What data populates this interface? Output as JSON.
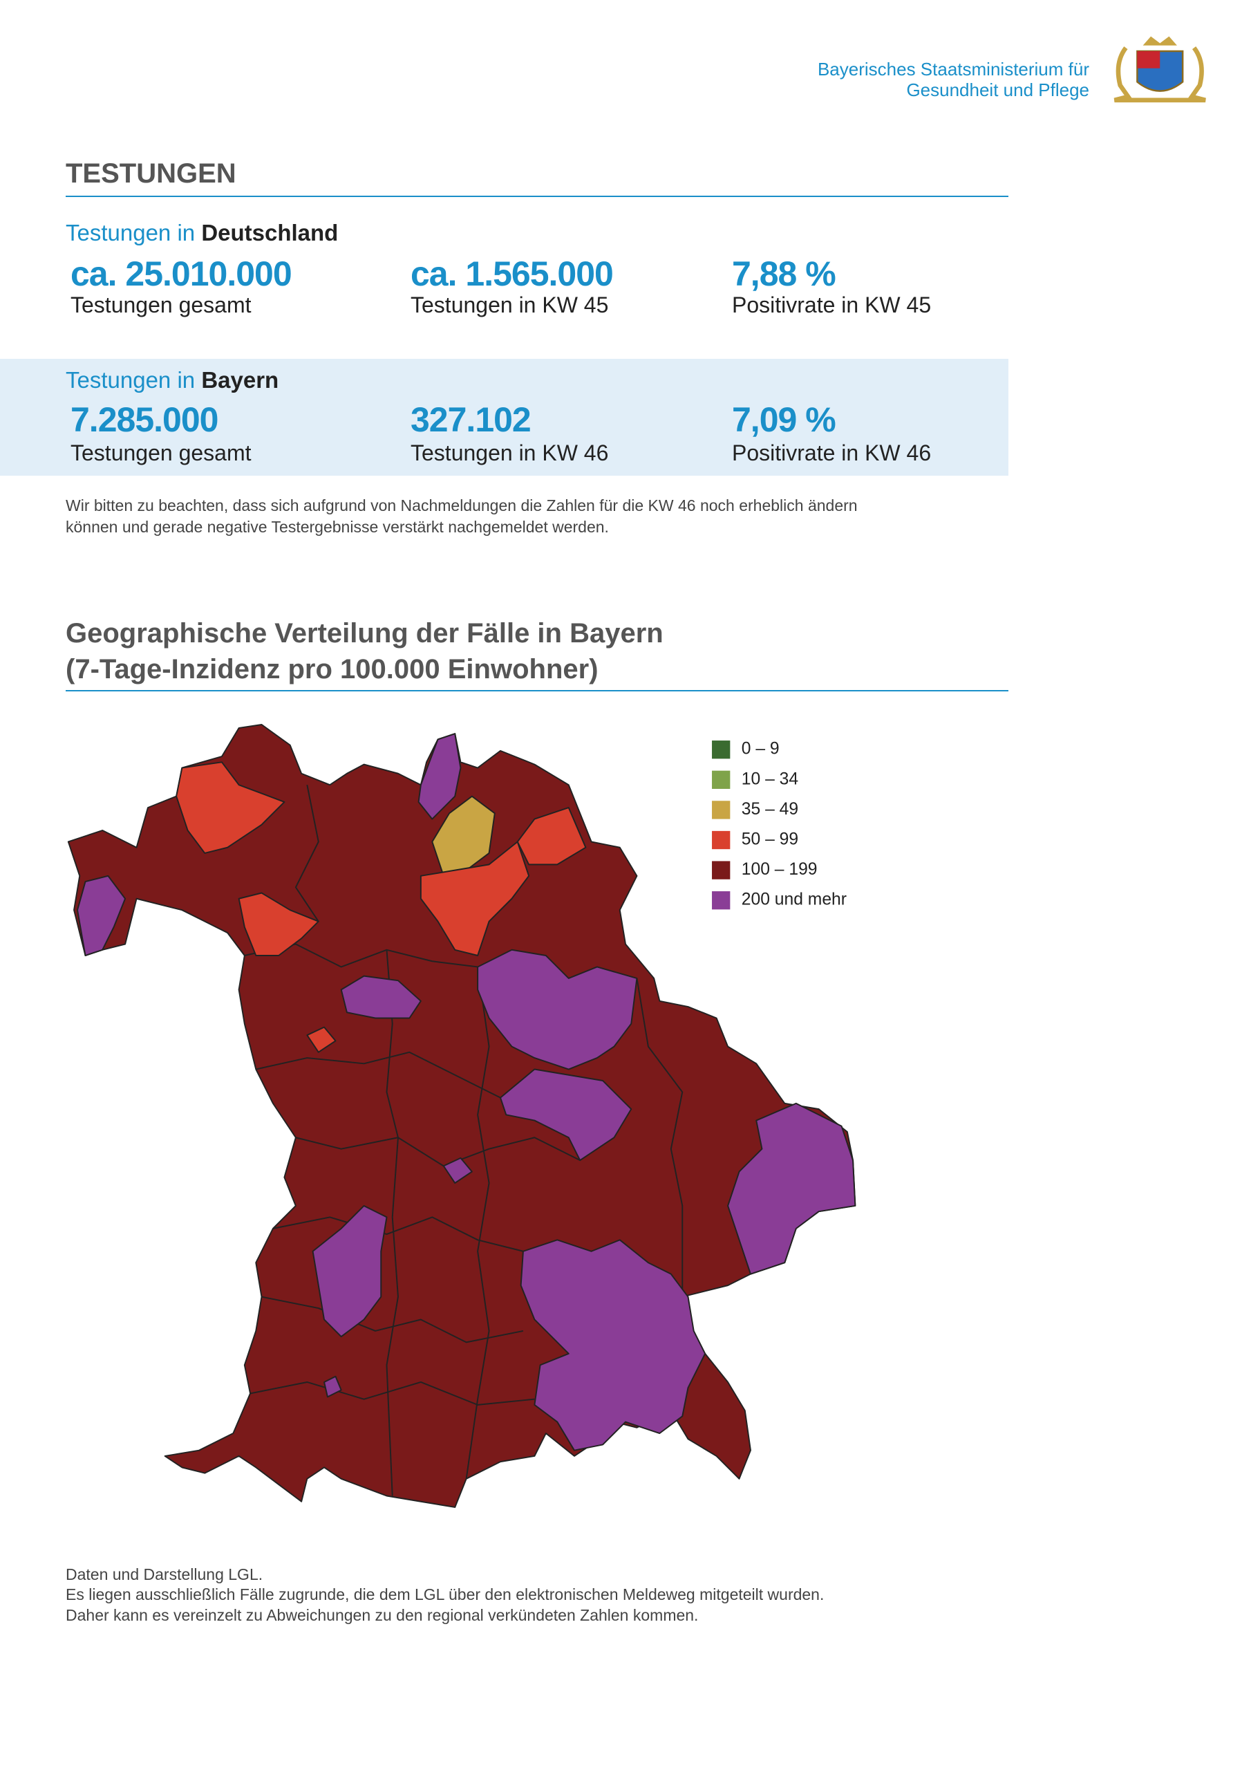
{
  "header": {
    "ministry": [
      "Bayerisches Staatsministerium für",
      "Gesundheit und Pflege"
    ]
  },
  "section_title": "TESTUNGEN",
  "germany": {
    "heading_prefix": "Testungen in",
    "heading_region": "Deutschland",
    "stats": [
      {
        "value": "ca. 25.010.000",
        "label": "Testungen gesamt"
      },
      {
        "value": "ca. 1.565.000",
        "label": "Testungen in KW 45"
      },
      {
        "value": "7,88 %",
        "label": "Positivrate in KW 45"
      }
    ]
  },
  "bayern": {
    "heading_prefix": "Testungen in",
    "heading_region": "Bayern",
    "stats": [
      {
        "value": "7.285.000",
        "label": "Testungen gesamt"
      },
      {
        "value": "327.102",
        "label": "Testungen in KW 46"
      },
      {
        "value": "7,09 %",
        "label": "Positivrate in KW 46"
      }
    ]
  },
  "note": [
    "Wir bitten zu beachten, dass sich aufgrund von Nachmeldungen die Zahlen für die KW 46 noch erheblich ändern",
    "können und gerade negative Testergebnisse verstärkt nachgemeldet werden."
  ],
  "map": {
    "title": [
      "Geographische Verteilung der Fälle in Bayern",
      "(7-Tage-Inzidenz pro 100.000 Einwohner)"
    ],
    "legend": [
      {
        "label": "0 – 9",
        "color": "#3a6b30"
      },
      {
        "label": "10 – 34",
        "color": "#7fa34a"
      },
      {
        "label": "35 – 49",
        "color": "#c9a544"
      },
      {
        "label": "50 – 99",
        "color": "#d9402e"
      },
      {
        "label": "100 – 199",
        "color": "#7a1a1a"
      },
      {
        "label": "200 und mehr",
        "color": "#8a3d96"
      }
    ]
  },
  "footer": [
    "Daten und Darstellung LGL.",
    "Es liegen ausschließlich Fälle zugrunde, die dem LGL über den elektronischen Meldeweg mitgeteilt wurden.",
    "Daher kann es vereinzelt zu Abweichungen zu den regional verkündeten Zahlen kommen."
  ]
}
